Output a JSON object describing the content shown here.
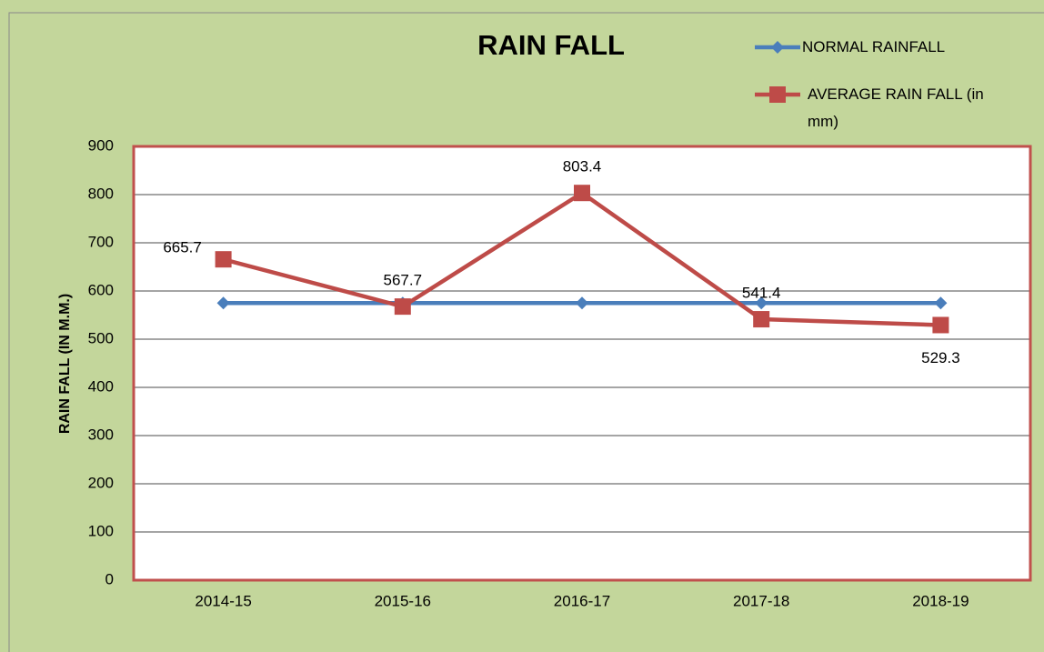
{
  "chart_data": {
    "type": "line",
    "title": "RAIN FALL",
    "y_label": "RAIN FALL (IN M.M.)",
    "categories": [
      "2014-15",
      "2015-16",
      "2016-17",
      "2017-18",
      "2018-19"
    ],
    "series": [
      {
        "name": "NORMAL RAINFALL",
        "color": "#4a7ebb",
        "marker": "diamond",
        "values": [
          575,
          575,
          575,
          575,
          575
        ]
      },
      {
        "name": "AVERAGE RAIN FALL (in mm)",
        "color": "#be4b48",
        "marker": "square",
        "values": [
          665.7,
          567.7,
          803.4,
          541.4,
          529.3
        ],
        "data_labels": true
      }
    ],
    "ylim": [
      0,
      900
    ],
    "yticks": [
      0,
      100,
      200,
      300,
      400,
      500,
      600,
      700,
      800,
      900
    ],
    "grid": true,
    "legend": "top-right"
  }
}
